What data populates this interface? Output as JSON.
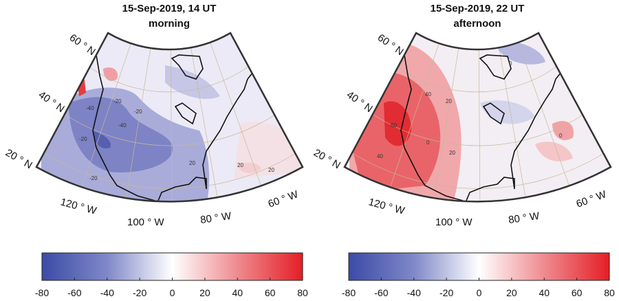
{
  "panels": [
    {
      "title": "15-Sep-2019, 14 UT",
      "subtitle": "morning",
      "tone": "blue",
      "contour_labels": [
        "-20",
        "-40",
        "-40",
        "-20",
        "-20",
        "-20",
        "20",
        "20",
        "20"
      ]
    },
    {
      "title": "15-Sep-2019, 22 UT",
      "subtitle": "afternoon",
      "tone": "red",
      "contour_labels": [
        "40",
        "60",
        "40",
        "20",
        "20",
        "0",
        "0",
        "0"
      ]
    }
  ],
  "lat_labels": [
    "60 ° N",
    "40 ° N",
    "20 ° N"
  ],
  "lon_labels": [
    "120 ° W",
    "100 ° W",
    "80 ° W",
    "60 ° W"
  ],
  "colorbar": {
    "ticks": [
      "-80",
      "-60",
      "-40",
      "-20",
      "0",
      "20",
      "40",
      "60",
      "80"
    ],
    "range": [
      -80,
      80
    ],
    "colors": {
      "min": "#3b4ba6",
      "mid": "#ffffff",
      "max": "#e41e26"
    }
  }
}
